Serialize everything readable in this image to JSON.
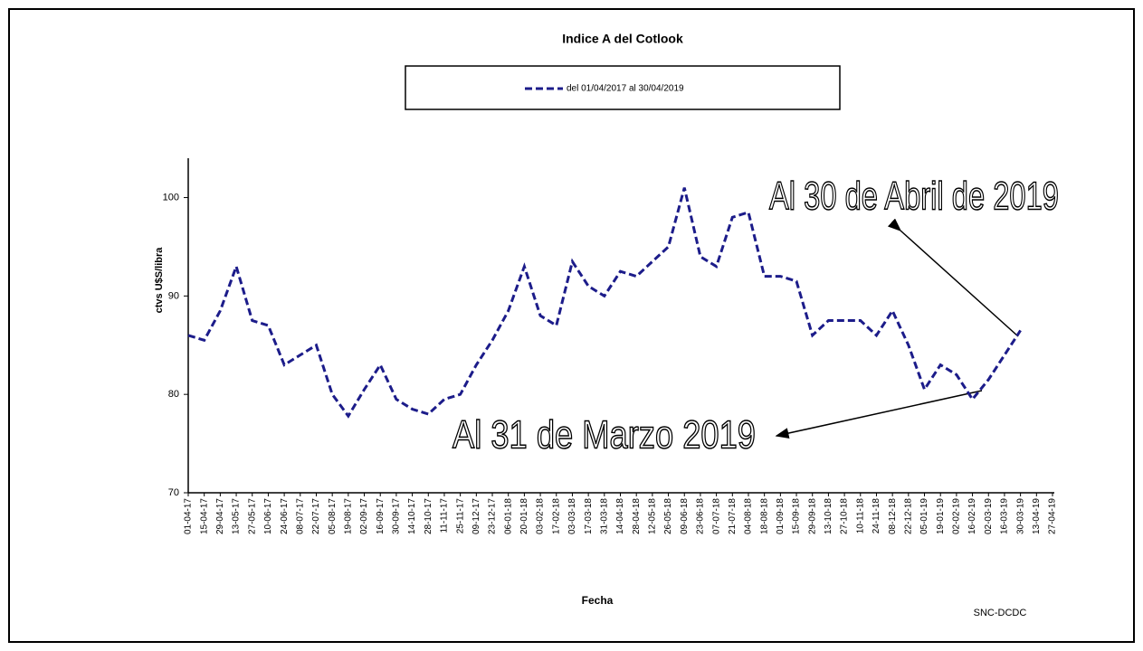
{
  "chart_data": {
    "type": "line",
    "title": "Indice A del Cotlook",
    "x_label": "Fecha",
    "y_label": "ctvs U$S/libra",
    "source": "SNC-DCDC",
    "annotations": [
      "Al 30 de Abril de 2019",
      "Al 31 de Marzo 2019"
    ],
    "categories": [
      "01-04-17",
      "15-04-17",
      "29-04-17",
      "13-05-17",
      "27-05-17",
      "10-06-17",
      "24-06-17",
      "08-07-17",
      "22-07-17",
      "05-08-17",
      "19-08-17",
      "02-09-17",
      "16-09-17",
      "30-09-17",
      "14-10-17",
      "28-10-17",
      "11-11-17",
      "25-11-17",
      "09-12-17",
      "23-12-17",
      "06-01-18",
      "20-01-18",
      "03-02-18",
      "17-02-18",
      "03-03-18",
      "17-03-18",
      "31-03-18",
      "14-04-18",
      "28-04-18",
      "12-05-18",
      "26-05-18",
      "09-06-18",
      "23-06-18",
      "07-07-18",
      "21-07-18",
      "04-08-18",
      "18-08-18",
      "01-09-18",
      "15-09-18",
      "29-09-18",
      "13-10-18",
      "27-10-18",
      "10-11-18",
      "24-11-18",
      "08-12-18",
      "22-12-18",
      "05-01-19",
      "19-01-19",
      "02-02-19",
      "16-02-19",
      "02-03-19",
      "16-03-19",
      "30-03-19",
      "13-04-19",
      "27-04-19"
    ],
    "series": [
      {
        "name": "del 01/04/2017 al 30/04/2019",
        "color": "#1c1c8a",
        "values": [
          86,
          85.5,
          88.5,
          93,
          87.5,
          87,
          83,
          84,
          85,
          80,
          77.8,
          80.5,
          83,
          79.5,
          78.5,
          78,
          79.5,
          80,
          83,
          85.5,
          88.5,
          93,
          88,
          87,
          93.5,
          91,
          90,
          92.5,
          92,
          93.5,
          95,
          101,
          94,
          93,
          98,
          98.5,
          92,
          92,
          91.5,
          86,
          87.5,
          87.5,
          87.5,
          86,
          88.5,
          85,
          80.5,
          83,
          82,
          79.5,
          81.5,
          84,
          86.5,
          null,
          null
        ]
      }
    ],
    "ylim": [
      70,
      104
    ],
    "yticks": [
      70,
      80,
      90,
      100
    ],
    "legend": "top"
  }
}
